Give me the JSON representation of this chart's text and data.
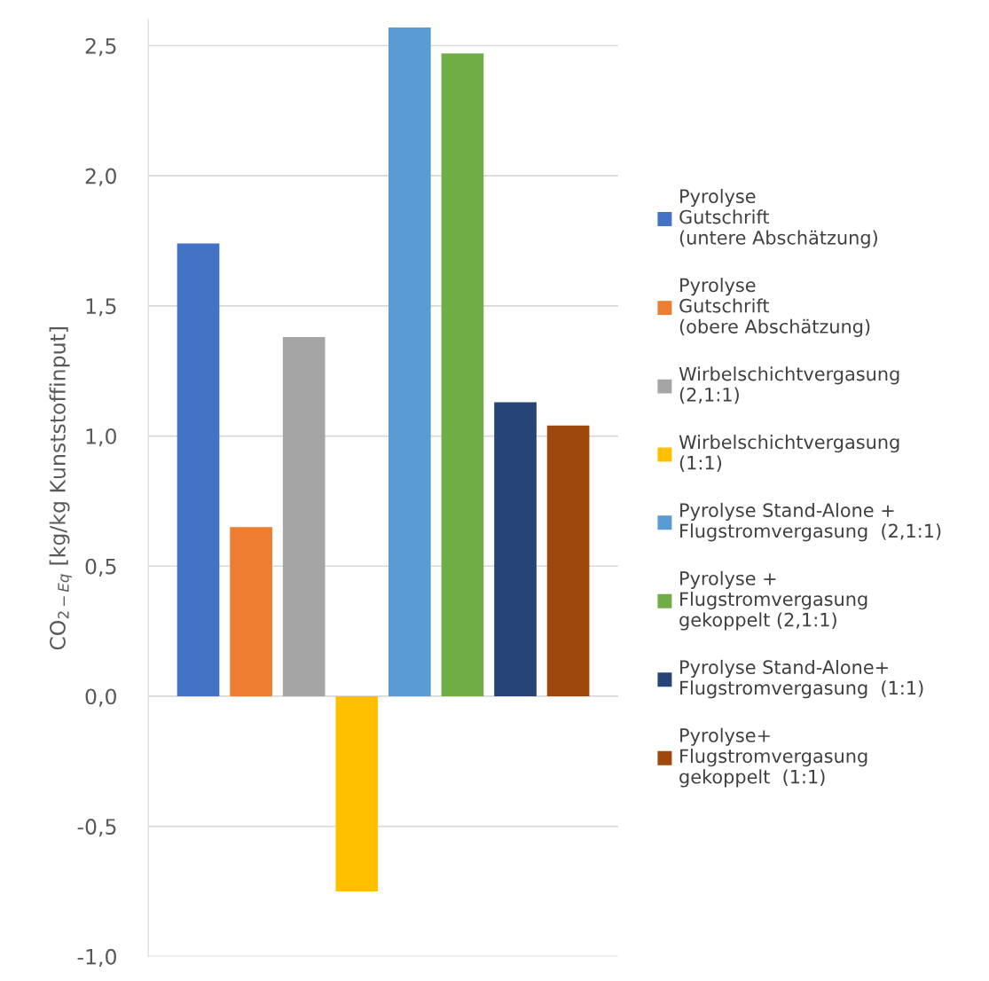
{
  "chart_data": {
    "type": "bar",
    "ylabel": "CO$_{2−Eq}$ [kg/kg Kunststoffinput]",
    "categories": [
      null
    ],
    "series": [
      {
        "name": "Pyrolyse\nGutschrift\n(untere Abschätzung)",
        "color": "#4472c4",
        "values": [
          1.74
        ]
      },
      {
        "name": "Pyrolyse\nGutschrift\n(obere Abschätzung)",
        "color": "#ed7d31",
        "values": [
          0.65
        ]
      },
      {
        "name": "Wirbelschichtvergasung\n(2,1:1)",
        "color": "#a5a5a5",
        "values": [
          1.38
        ]
      },
      {
        "name": "Wirbelschichtvergasung\n(1:1)",
        "color": "#ffc000",
        "values": [
          -0.75
        ]
      },
      {
        "name": "Pyrolyse Stand-Alone +\nFlugstromvergasung  (2,1:1)",
        "color": "#5b9bd5",
        "values": [
          2.57
        ]
      },
      {
        "name": "Pyrolyse +\nFlugstromvergasung\ngekoppelt (2,1:1)",
        "color": "#70ad47",
        "values": [
          2.47
        ]
      },
      {
        "name": "Pyrolyse Stand-Alone+\nFlugstromvergasung  (1:1)",
        "color": "#264478",
        "values": [
          1.13
        ]
      },
      {
        "name": "Pyrolyse+\nFlugstromvergasung\ngekoppelt  (1:1)",
        "color": "#9e480e",
        "values": [
          1.04
        ]
      }
    ],
    "ylim": [
      -1.0,
      2.6
    ],
    "yticks": [
      {
        "value": -1.0,
        "label": "-1,0"
      },
      {
        "value": -0.5,
        "label": "-0,5"
      },
      {
        "value": 0.0,
        "label": "0,0"
      },
      {
        "value": 0.5,
        "label": "0,5"
      },
      {
        "value": 1.0,
        "label": "1,0"
      },
      {
        "value": 1.5,
        "label": "1,5"
      },
      {
        "value": 2.0,
        "label": "2,0"
      },
      {
        "value": 2.5,
        "label": "2,5"
      }
    ],
    "grid": "y",
    "legend": "right",
    "tick_labels": "y"
  }
}
